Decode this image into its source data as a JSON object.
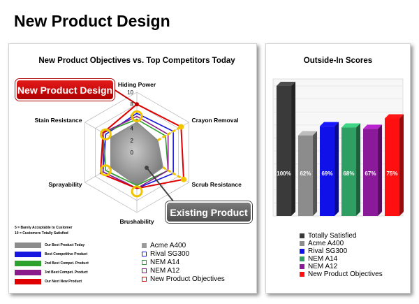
{
  "page": {
    "title": "New Product Design"
  },
  "radar_panel": {
    "callout_new": "New Product Design",
    "callout_existing": "Existing Product",
    "scale_note_1": "5 = Barely Acceptable to Customer",
    "scale_note_2": "10 = Customers Totally Satisfied",
    "left_legend": [
      {
        "label": "Our Best Product Today",
        "color": "#8c8c8c"
      },
      {
        "label": "Best Competitive Product",
        "color": "#1616e0"
      },
      {
        "label": "2nd Best Compet. Product",
        "color": "#2ea12e"
      },
      {
        "label": "3rd Best Compet. Product",
        "color": "#8a1a8a"
      },
      {
        "label": "Our Next New Product",
        "color": "#e00000"
      }
    ]
  },
  "chart_data": [
    {
      "type": "radar",
      "title": "New Product Objectives vs. Top Competitors Today",
      "axes": [
        "Hiding Power",
        "Crayon Removal",
        "Scrub Resistance",
        "Brushability",
        "Sprayability",
        "Stain Resistance"
      ],
      "ticks": [
        0,
        2,
        4,
        6,
        8,
        10
      ],
      "range": [
        0,
        10
      ],
      "series": [
        {
          "name": "Acme A400",
          "color": "#8c8c8c",
          "fill": true,
          "values": [
            5,
            4,
            5,
            5.5,
            5,
            5
          ]
        },
        {
          "name": "Rival SG300",
          "color": "#1616e0",
          "values": [
            6.5,
            7,
            7,
            6,
            6.5,
            6
          ]
        },
        {
          "name": "NEM A14",
          "color": "#2ea12e",
          "values": [
            5.5,
            5.5,
            6,
            5.5,
            6,
            6.5
          ]
        },
        {
          "name": "NEM A12",
          "color": "#8a1a8a",
          "values": [
            6,
            6,
            6,
            6,
            6.5,
            6.5
          ]
        },
        {
          "name": "New Product Objectives",
          "color": "#e00000",
          "values": [
            8,
            8.5,
            9,
            6,
            7,
            6.5
          ]
        }
      ]
    },
    {
      "type": "bar",
      "title": "Outside-In Scores",
      "categories": [
        "Totally Satisfied",
        "Acme A400",
        "Rival SG300",
        "NEM A14",
        "NEM A12",
        "New Product Objectives"
      ],
      "values": [
        100,
        62,
        69,
        68,
        67,
        75
      ],
      "value_labels": [
        "100%",
        "62%",
        "69%",
        "68%",
        "67%",
        "75%"
      ],
      "colors": [
        "#3a3a3a",
        "#8c8c8c",
        "#1010e8",
        "#2e9e62",
        "#8a1a9a",
        "#ff1010"
      ],
      "ylim": [
        0,
        100
      ]
    }
  ]
}
